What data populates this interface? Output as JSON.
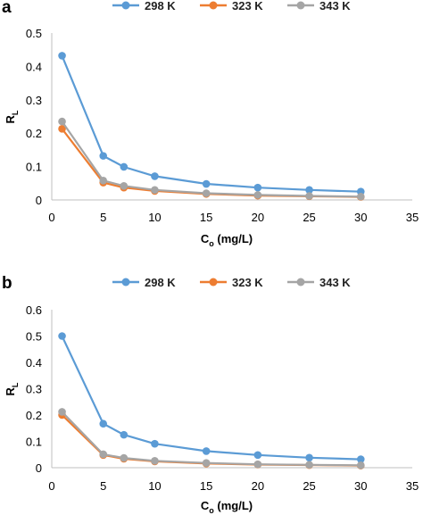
{
  "chart_data": [
    {
      "panel_label": "a",
      "type": "line",
      "xlabel": "C",
      "xlabel_sub": "o",
      "xlabel_unit": " (mg/L)",
      "ylabel": "R",
      "ylabel_sub": "L",
      "xlim": [
        0,
        35
      ],
      "ylim": [
        0,
        0.5
      ],
      "x_ticks": [
        "0",
        "5",
        "10",
        "15",
        "20",
        "25",
        "30",
        "35"
      ],
      "y_ticks": [
        "0",
        "0.1",
        "0.2",
        "0.3",
        "0.4",
        "0.5"
      ],
      "x": [
        1,
        5,
        7,
        10,
        15,
        20,
        25,
        30
      ],
      "legend_position": "top",
      "grid": false,
      "series": [
        {
          "name": "298 K",
          "color": "#5B9BD5",
          "values": [
            0.432,
            0.132,
            0.099,
            0.071,
            0.048,
            0.037,
            0.03,
            0.025
          ]
        },
        {
          "name": "323 K",
          "color": "#ED7D31",
          "values": [
            0.213,
            0.052,
            0.037,
            0.027,
            0.018,
            0.013,
            0.011,
            0.009
          ]
        },
        {
          "name": "343 K",
          "color": "#A5A5A5",
          "values": [
            0.235,
            0.058,
            0.042,
            0.03,
            0.02,
            0.015,
            0.012,
            0.01
          ]
        }
      ]
    },
    {
      "panel_label": "b",
      "type": "line",
      "xlabel": "C",
      "xlabel_sub": "o",
      "xlabel_unit": " (mg/L)",
      "ylabel": "R",
      "ylabel_sub": "L",
      "xlim": [
        0,
        35
      ],
      "ylim": [
        0,
        0.6
      ],
      "x_ticks": [
        "0",
        "5",
        "10",
        "15",
        "20",
        "25",
        "30",
        "35"
      ],
      "y_ticks": [
        "0",
        "0.1",
        "0.2",
        "0.3",
        "0.4",
        "0.5",
        "0.6"
      ],
      "x": [
        1,
        5,
        7,
        10,
        15,
        20,
        25,
        30
      ],
      "legend_position": "top",
      "grid": false,
      "series": [
        {
          "name": "298 K",
          "color": "#5B9BD5",
          "values": [
            0.5,
            0.167,
            0.125,
            0.091,
            0.063,
            0.048,
            0.038,
            0.032
          ]
        },
        {
          "name": "323 K",
          "color": "#ED7D31",
          "values": [
            0.2,
            0.048,
            0.034,
            0.024,
            0.016,
            0.012,
            0.01,
            0.008
          ]
        },
        {
          "name": "343 K",
          "color": "#A5A5A5",
          "values": [
            0.212,
            0.051,
            0.037,
            0.026,
            0.018,
            0.013,
            0.011,
            0.009
          ]
        }
      ]
    }
  ]
}
